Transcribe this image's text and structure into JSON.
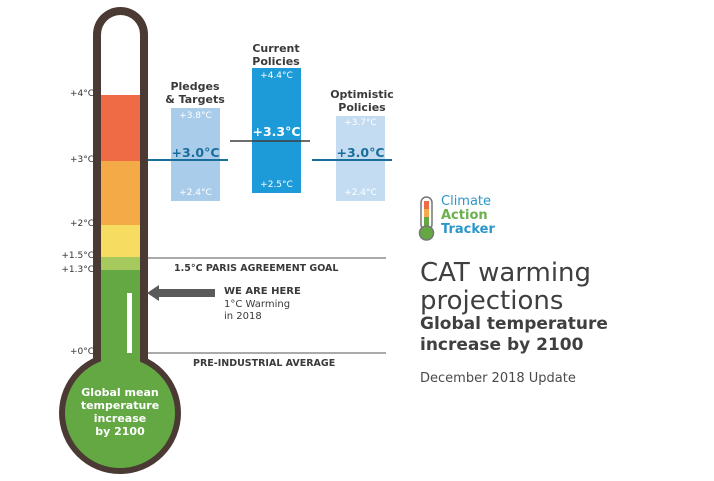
{
  "colors": {
    "outline": "#4a3a33",
    "tube_bg": "#ffffff",
    "band_red": "#ee6b46",
    "band_orange": "#f4ab47",
    "band_yellow": "#f6dd62",
    "band_lightgreen": "#a5c95c",
    "band_green": "#64a844",
    "pledges_box": "#a9ccea",
    "current_box": "#1c9bd8",
    "optimistic_box": "#c3dcf1",
    "marker_line": "#1a6e9c",
    "arrow": "#5a5a5a",
    "logo_climate": "#2a96c9",
    "logo_action": "#6ab04c",
    "logo_tracker": "#2a96c9"
  },
  "thermometer": {
    "ticks": [
      "+4°C",
      "+3°C",
      "+2°C",
      "+1.5°C",
      "+1.3°C",
      "+0°C"
    ],
    "bulb_lines": [
      "Global mean",
      "temperature",
      "increase",
      "by 2100"
    ]
  },
  "scenarios": [
    {
      "title_lines": [
        "Pledges",
        "& Targets"
      ],
      "high": "+3.8°C",
      "mid": "+3.0°C",
      "low": "+2.4°C"
    },
    {
      "title_lines": [
        "Current",
        "Policies"
      ],
      "high": "+4.4°C",
      "mid": "+3.3°C",
      "low": "+2.5°C"
    },
    {
      "title_lines": [
        "Optimistic",
        "Policies"
      ],
      "high": "+3.7°C",
      "mid": "+3.0°C",
      "low": "+2.4°C"
    }
  ],
  "references": {
    "paris_goal": "1.5°C PARIS AGREEMENT GOAL",
    "pre_industrial": "PRE-INDUSTRIAL AVERAGE",
    "we_are_here": "WE ARE HERE",
    "warming_lines": [
      "1°C Warming",
      "in 2018"
    ]
  },
  "logo": {
    "lines": [
      "Climate",
      "Action",
      "Tracker"
    ]
  },
  "heading": {
    "title_lines": [
      "CAT warming",
      "projections"
    ],
    "subtitle_lines": [
      "Global temperature",
      "increase by 2100"
    ],
    "date": "December 2018 Update"
  }
}
